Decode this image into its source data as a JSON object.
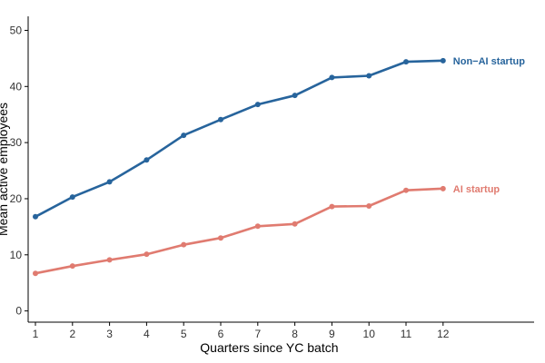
{
  "chart_data": {
    "type": "line",
    "title": "",
    "xlabel": "Quarters since YC batch",
    "ylabel": "Mean active employees",
    "x": [
      1,
      2,
      3,
      4,
      5,
      6,
      7,
      8,
      9,
      10,
      11,
      12
    ],
    "xlim": [
      1,
      14.5
    ],
    "ylim": [
      -2,
      52.5
    ],
    "yticks": [
      0,
      10,
      20,
      30,
      40,
      50
    ],
    "grid": false,
    "legend": "none",
    "series": [
      {
        "name": "Non−AI startup",
        "color": "#27649c",
        "values": [
          16.8,
          20.3,
          23.0,
          26.9,
          31.3,
          34.1,
          36.8,
          38.4,
          41.6,
          41.9,
          44.4,
          44.6
        ]
      },
      {
        "name": "AI startup",
        "color": "#e07b70",
        "values": [
          6.7,
          8.0,
          9.1,
          10.1,
          11.8,
          13.0,
          15.1,
          15.5,
          18.6,
          18.7,
          21.5,
          21.8
        ]
      }
    ]
  }
}
